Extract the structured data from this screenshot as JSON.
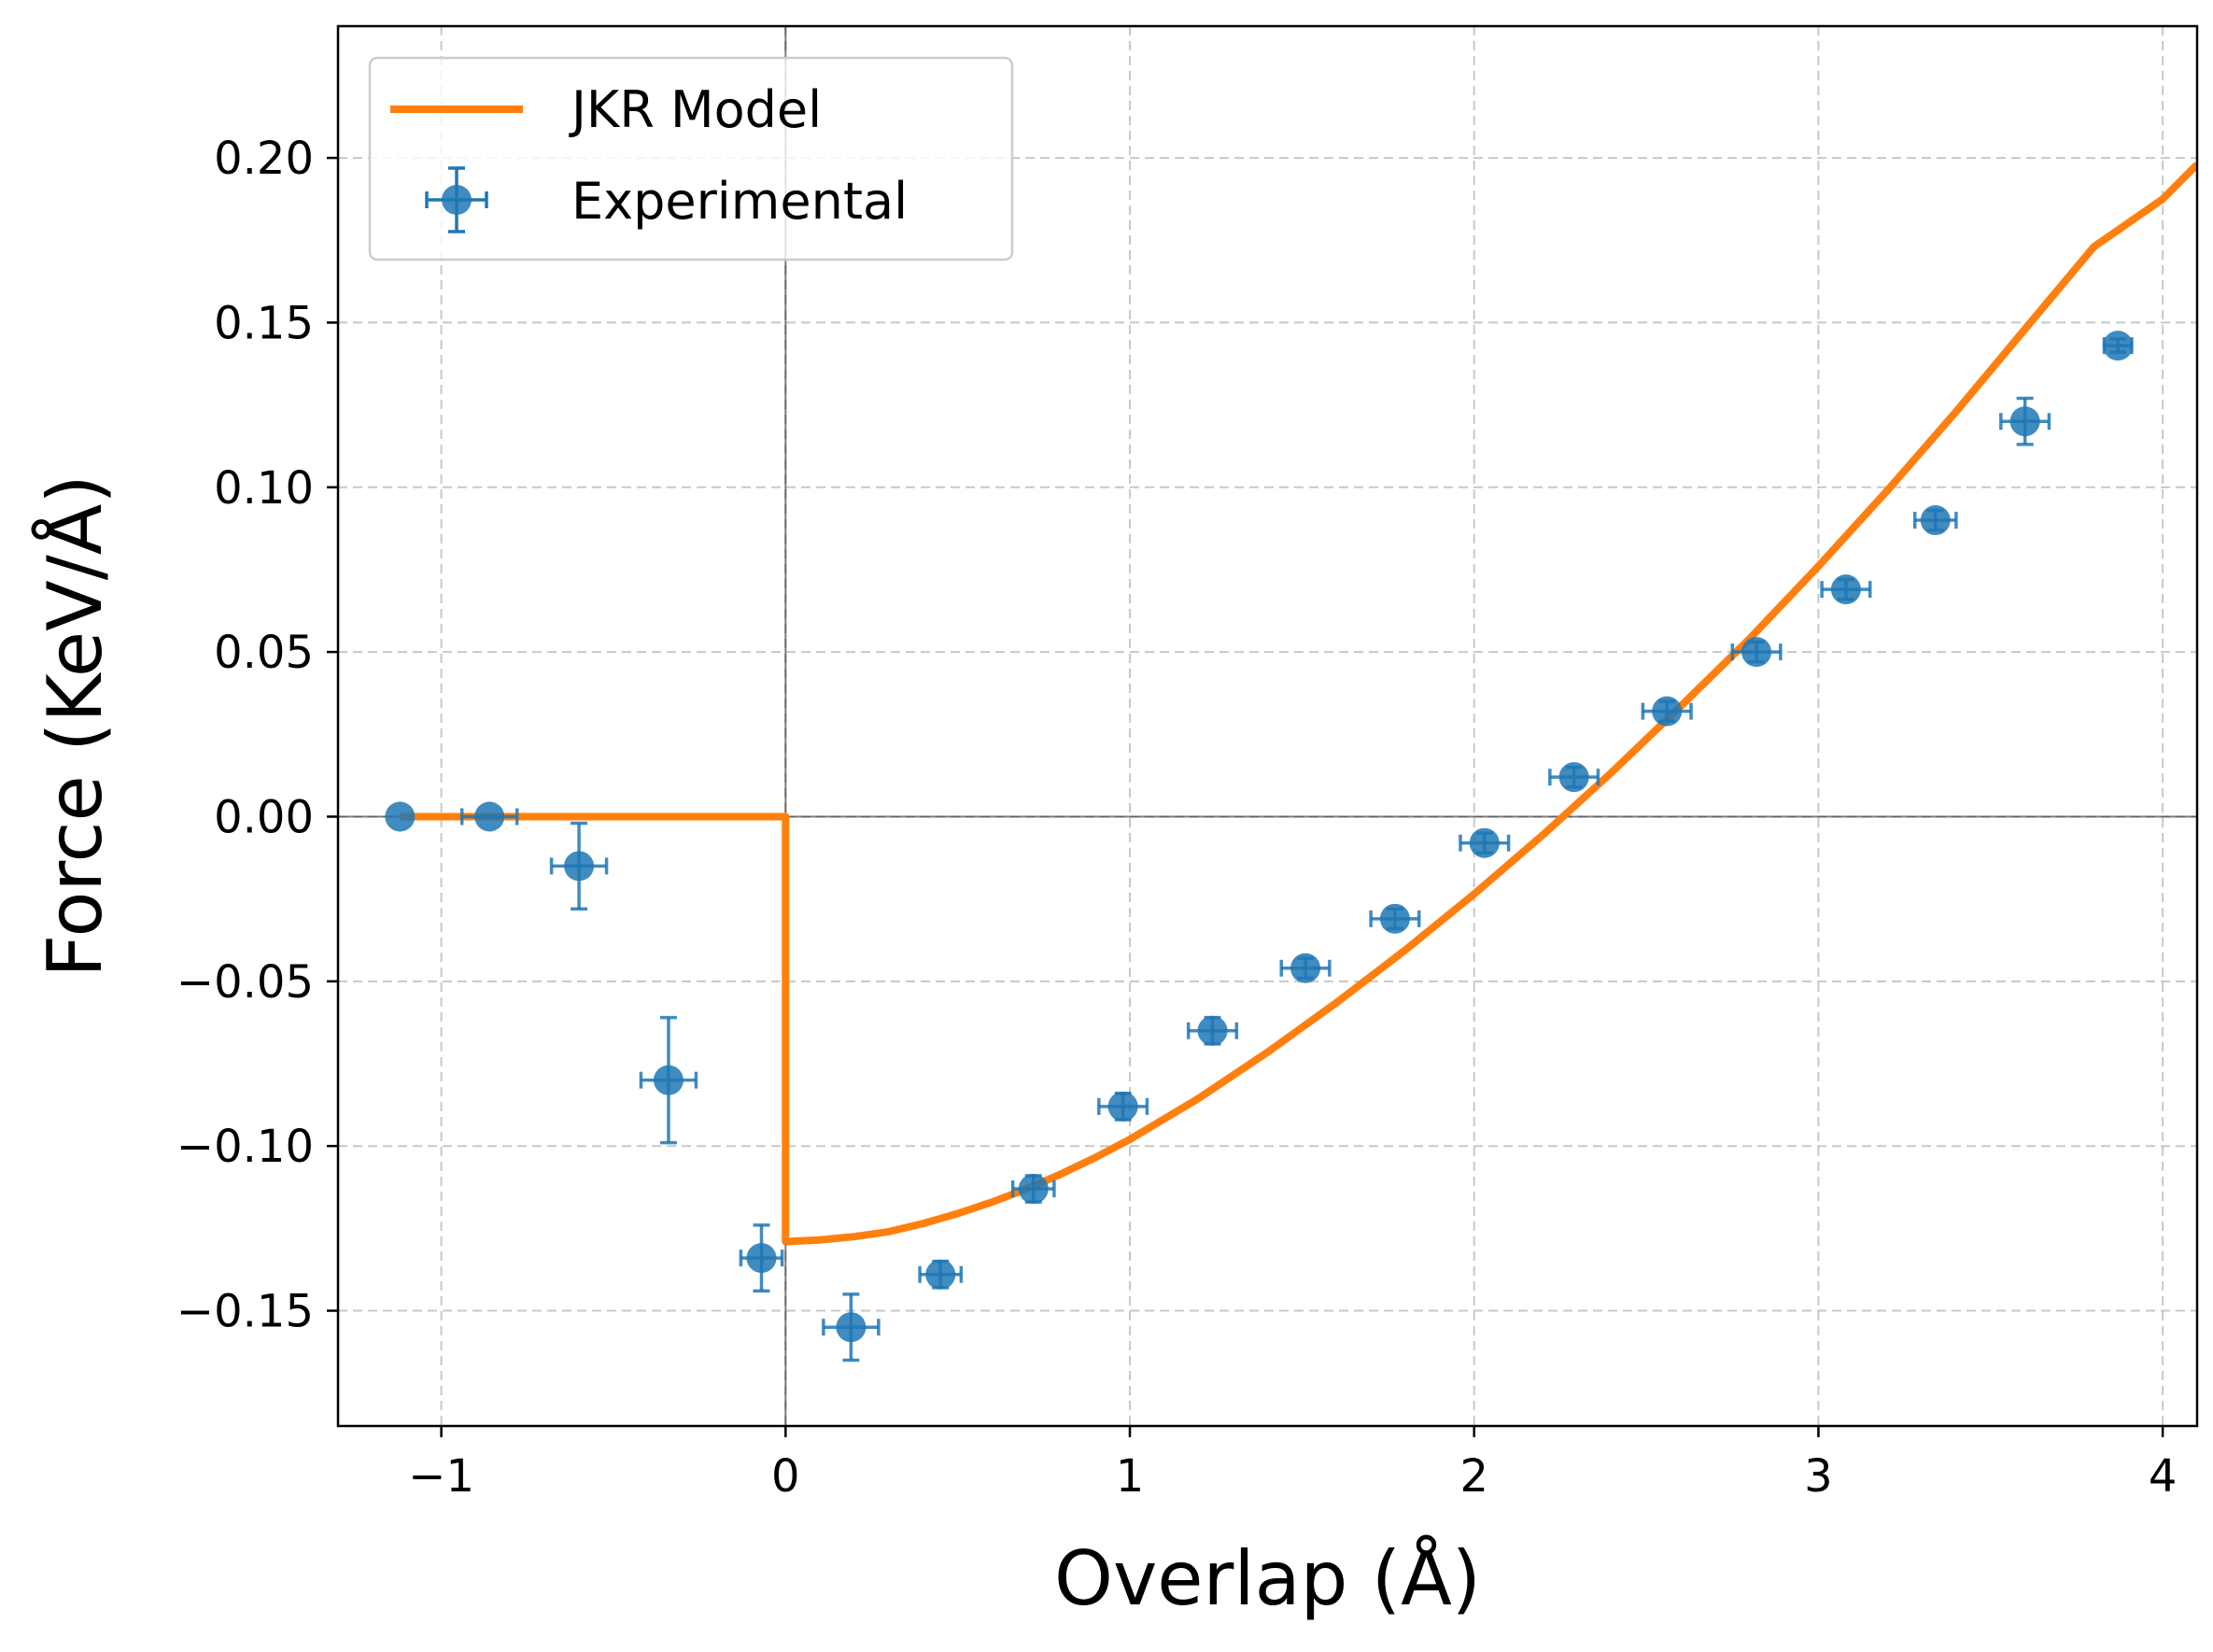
{
  "chart_data": {
    "type": "scatter",
    "xlabel": "Overlap (Å)",
    "ylabel": "Force (KeV/Å)",
    "xlim": [
      -1.3,
      4.1
    ],
    "ylim": [
      -0.185,
      0.24
    ],
    "grid": true,
    "grid_style": "dashed",
    "legend_position": "top-left",
    "x_ticks": [
      -1,
      0,
      1,
      2,
      3,
      4
    ],
    "x_tick_labels": [
      "−1",
      "0",
      "1",
      "2",
      "3",
      "4"
    ],
    "y_ticks": [
      0.2,
      0.15,
      0.1,
      0.05,
      0.0,
      -0.05,
      -0.1,
      -0.15
    ],
    "y_tick_labels": [
      "0.20",
      "0.15",
      "0.10",
      "0.05",
      "0.00",
      "−0.05",
      "−0.10",
      "−0.15"
    ],
    "reference_lines": {
      "x": 0,
      "y": 0
    },
    "series": [
      {
        "name": "JKR Model",
        "kind": "line",
        "color": "#ff7f0e",
        "x": [
          -1.12,
          0.0,
          0.0,
          0.1,
          0.2,
          0.3,
          0.4,
          0.5,
          0.6,
          0.7,
          0.8,
          0.9,
          1.0,
          1.2,
          1.4,
          1.6,
          1.8,
          2.0,
          2.2,
          2.4,
          2.6,
          2.8,
          3.0,
          3.2,
          3.4,
          3.6,
          3.8,
          4.0,
          4.1
        ],
        "y": [
          0.0,
          0.0,
          -0.129,
          -0.1285,
          -0.1275,
          -0.126,
          -0.1235,
          -0.1205,
          -0.117,
          -0.113,
          -0.1085,
          -0.1035,
          -0.098,
          -0.0855,
          -0.0715,
          -0.0565,
          -0.0405,
          -0.0235,
          -0.0055,
          0.0135,
          0.0335,
          0.054,
          0.076,
          0.099,
          0.123,
          0.148,
          0.173,
          0.1875,
          0.198
        ]
      },
      {
        "name": "Experimental",
        "kind": "scatter-errorbar",
        "color": "#1f77b4",
        "points": [
          {
            "x": -1.12,
            "y": 0.0,
            "xerr": 0.0,
            "yerr": 0.0
          },
          {
            "x": -0.86,
            "y": 0.0,
            "xerr": 0.08,
            "yerr": 0.0
          },
          {
            "x": -0.6,
            "y": -0.015,
            "xerr": 0.08,
            "yerr": 0.013
          },
          {
            "x": -0.34,
            "y": -0.08,
            "xerr": 0.08,
            "yerr": 0.019
          },
          {
            "x": -0.07,
            "y": -0.134,
            "xerr": 0.06,
            "yerr": 0.01
          },
          {
            "x": 0.19,
            "y": -0.155,
            "xerr": 0.08,
            "yerr": 0.01
          },
          {
            "x": 0.45,
            "y": -0.139,
            "xerr": 0.06,
            "yerr": 0.004
          },
          {
            "x": 0.72,
            "y": -0.113,
            "xerr": 0.06,
            "yerr": 0.004
          },
          {
            "x": 0.98,
            "y": -0.088,
            "xerr": 0.07,
            "yerr": 0.004
          },
          {
            "x": 1.24,
            "y": -0.065,
            "xerr": 0.07,
            "yerr": 0.004
          },
          {
            "x": 1.51,
            "y": -0.046,
            "xerr": 0.07,
            "yerr": 0.003
          },
          {
            "x": 1.77,
            "y": -0.031,
            "xerr": 0.07,
            "yerr": 0.003
          },
          {
            "x": 2.03,
            "y": -0.008,
            "xerr": 0.07,
            "yerr": 0.003
          },
          {
            "x": 2.29,
            "y": 0.012,
            "xerr": 0.07,
            "yerr": 0.003
          },
          {
            "x": 2.56,
            "y": 0.032,
            "xerr": 0.07,
            "yerr": 0.003
          },
          {
            "x": 2.82,
            "y": 0.05,
            "xerr": 0.07,
            "yerr": 0.003
          },
          {
            "x": 3.08,
            "y": 0.069,
            "xerr": 0.07,
            "yerr": 0.003
          },
          {
            "x": 3.34,
            "y": 0.09,
            "xerr": 0.06,
            "yerr": 0.003
          },
          {
            "x": 3.6,
            "y": 0.12,
            "xerr": 0.07,
            "yerr": 0.007
          },
          {
            "x": 3.87,
            "y": 0.143,
            "xerr": 0.04,
            "yerr": 0.002
          }
        ]
      }
    ],
    "legend": [
      {
        "label": "JKR Model",
        "marker": "line",
        "color": "#ff7f0e"
      },
      {
        "label": "Experimental",
        "marker": "errorbar-point",
        "color": "#1f77b4"
      }
    ]
  }
}
